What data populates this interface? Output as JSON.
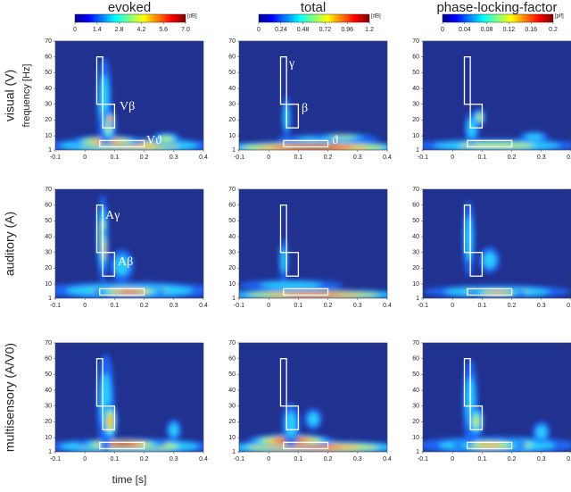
{
  "column_titles": [
    "evoked",
    "total",
    "phase-locking-factor"
  ],
  "row_labels": [
    "visual (V)",
    "auditory (A)",
    "multisensory (A/V0)"
  ],
  "y_axis_label": "frequency [Hz]",
  "x_axis_label": "time [s]",
  "colorbars": [
    {
      "clim": [
        0,
        7
      ],
      "ticks": [
        0,
        1.4,
        2.8,
        4.2,
        5.6,
        {
          "value": 7,
          "label": "7.0"
        }
      ],
      "unit": "[dB]"
    },
    {
      "clim": [
        0,
        1.2
      ],
      "ticks": [
        0,
        0.24,
        0.48,
        0.72,
        0.96,
        1.2
      ],
      "unit": "[dB]"
    },
    {
      "clim": [
        0,
        0.2
      ],
      "ticks": [
        0,
        0.04,
        0.08,
        0.12,
        0.16,
        0.2
      ],
      "unit": "[plf]"
    }
  ],
  "chart_data": [
    {
      "type": "heatmap",
      "xlim": [
        -0.1,
        0.4
      ],
      "ylim": [
        1,
        70
      ],
      "xticks": [
        -0.1,
        0,
        0.1,
        0.2,
        0.3,
        0.4
      ],
      "yticks": [
        1,
        10,
        20,
        30,
        40,
        50,
        60,
        70
      ],
      "annotations": [
        "Vβ",
        "Vϑ"
      ]
    },
    {
      "type": "heatmap",
      "xlim": [
        -0.1,
        0.4
      ],
      "ylim": [
        1,
        70
      ],
      "xticks": [
        -0.1,
        0,
        0.1,
        0.2,
        0.3,
        0.4
      ],
      "yticks": [
        1,
        10,
        20,
        30,
        40,
        50,
        60,
        70
      ],
      "annotations": [
        "γ",
        "β",
        "ϑ"
      ]
    },
    {
      "type": "heatmap",
      "xlim": [
        -0.1,
        0.4
      ],
      "ylim": [
        1,
        70
      ],
      "xticks": [
        -0.1,
        0,
        0.1,
        0.2,
        0.3,
        0.4
      ],
      "yticks": [
        1,
        10,
        20,
        30,
        40,
        50,
        60,
        70
      ]
    },
    {
      "type": "heatmap",
      "xlim": [
        -0.1,
        0.4
      ],
      "ylim": [
        1,
        70
      ],
      "xticks": [
        -0.1,
        0,
        0.1,
        0.2,
        0.3,
        0.4
      ],
      "yticks": [
        1,
        10,
        20,
        30,
        40,
        50,
        60,
        70
      ],
      "annotations": [
        "Aγ",
        "Aβ"
      ]
    },
    {
      "type": "heatmap",
      "xlim": [
        -0.1,
        0.4
      ],
      "ylim": [
        1,
        70
      ],
      "xticks": [
        -0.1,
        0,
        0.1,
        0.2,
        0.3,
        0.4
      ],
      "yticks": [
        1,
        10,
        20,
        30,
        40,
        50,
        60,
        70
      ]
    },
    {
      "type": "heatmap",
      "xlim": [
        -0.1,
        0.4
      ],
      "ylim": [
        1,
        70
      ],
      "xticks": [
        -0.1,
        0,
        0.1,
        0.2,
        0.3,
        0.4
      ],
      "yticks": [
        1,
        10,
        20,
        30,
        40,
        50,
        60,
        70
      ]
    },
    {
      "type": "heatmap",
      "xlim": [
        -0.1,
        0.4
      ],
      "ylim": [
        1,
        70
      ],
      "xticks": [
        -0.1,
        0,
        0.1,
        0.2,
        0.3,
        0.4
      ],
      "yticks": [
        1,
        10,
        20,
        30,
        40,
        50,
        60,
        70
      ]
    },
    {
      "type": "heatmap",
      "xlim": [
        -0.1,
        0.4
      ],
      "ylim": [
        1,
        70
      ],
      "xticks": [
        -0.1,
        0,
        0.1,
        0.2,
        0.3,
        0.4
      ],
      "yticks": [
        1,
        10,
        20,
        30,
        40,
        50,
        60,
        70
      ]
    },
    {
      "type": "heatmap",
      "xlim": [
        -0.1,
        0.4
      ],
      "ylim": [
        1,
        70
      ],
      "xticks": [
        -0.1,
        0,
        0.1,
        0.2,
        0.3,
        0.4
      ],
      "yticks": [
        1,
        10,
        20,
        30,
        40,
        50,
        60,
        70
      ]
    }
  ]
}
